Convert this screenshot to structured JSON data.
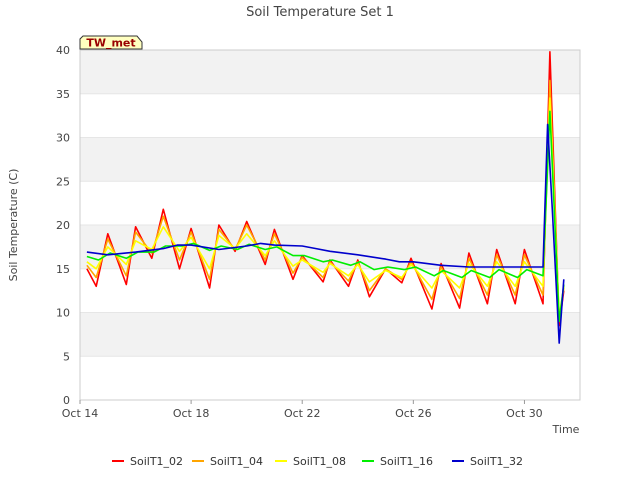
{
  "chart_data": {
    "type": "line",
    "title": "Soil Temperature Set 1",
    "xlabel": "Time",
    "ylabel": "Soil Temperature (C)",
    "ylim": [
      0,
      40
    ],
    "yticks": [
      0,
      5,
      10,
      15,
      20,
      25,
      30,
      35,
      40
    ],
    "xlim": [
      "2022-10-14",
      "2022-11-01T00:00"
    ],
    "xticks": [
      {
        "label": "Oct 14",
        "date": "2022-10-14"
      },
      {
        "label": "Oct 18",
        "date": "2022-10-18"
      },
      {
        "label": "Oct 22",
        "date": "2022-10-22"
      },
      {
        "label": "Oct 26",
        "date": "2022-10-26"
      },
      {
        "label": "Oct 30",
        "date": "2022-10-30"
      }
    ],
    "grid": "horizontal bands",
    "legend_placement": "bottom",
    "annotation": "TW_met",
    "series": [
      {
        "name": "SoilT1_02",
        "color": "#ff0000",
        "points": [
          [
            "2022-10-14T06:00",
            15.0
          ],
          [
            "2022-10-14T14:00",
            13.0
          ],
          [
            "2022-10-15T00:00",
            19.0
          ],
          [
            "2022-10-15T16:00",
            13.2
          ],
          [
            "2022-10-16T00:00",
            19.8
          ],
          [
            "2022-10-16T14:00",
            16.2
          ],
          [
            "2022-10-17T00:00",
            21.8
          ],
          [
            "2022-10-17T14:00",
            15.0
          ],
          [
            "2022-10-18T00:00",
            19.6
          ],
          [
            "2022-10-18T16:00",
            12.8
          ],
          [
            "2022-10-19T00:00",
            20.0
          ],
          [
            "2022-10-19T14:00",
            17.0
          ],
          [
            "2022-10-20T00:00",
            20.4
          ],
          [
            "2022-10-20T16:00",
            15.5
          ],
          [
            "2022-10-21T00:00",
            19.5
          ],
          [
            "2022-10-21T16:00",
            13.8
          ],
          [
            "2022-10-22T00:00",
            16.5
          ],
          [
            "2022-10-22T18:00",
            13.5
          ],
          [
            "2022-10-23T00:00",
            16.0
          ],
          [
            "2022-10-23T16:00",
            13.0
          ],
          [
            "2022-10-24T00:00",
            16.0
          ],
          [
            "2022-10-24T10:00",
            11.8
          ],
          [
            "2022-10-25T00:00",
            15.0
          ],
          [
            "2022-10-25T14:00",
            13.4
          ],
          [
            "2022-10-25T22:00",
            16.2
          ],
          [
            "2022-10-26T16:00",
            10.4
          ],
          [
            "2022-10-27T00:00",
            15.6
          ],
          [
            "2022-10-27T16:00",
            10.5
          ],
          [
            "2022-10-28T00:00",
            16.8
          ],
          [
            "2022-10-28T16:00",
            11.0
          ],
          [
            "2022-10-29T00:00",
            17.2
          ],
          [
            "2022-10-29T16:00",
            11.0
          ],
          [
            "2022-10-30T00:00",
            17.2
          ],
          [
            "2022-10-30T16:00",
            11.0
          ],
          [
            "2022-10-30T22:00",
            39.8
          ],
          [
            "2022-10-31T06:00",
            8.5
          ],
          [
            "2022-10-31T10:00",
            12.5
          ]
        ]
      },
      {
        "name": "SoilT1_04",
        "color": "#ffa500",
        "points": [
          [
            "2022-10-14T06:00",
            15.4
          ],
          [
            "2022-10-14T14:00",
            14.0
          ],
          [
            "2022-10-15T00:00",
            18.4
          ],
          [
            "2022-10-15T16:00",
            14.2
          ],
          [
            "2022-10-16T00:00",
            19.2
          ],
          [
            "2022-10-16T14:00",
            16.8
          ],
          [
            "2022-10-17T00:00",
            21.0
          ],
          [
            "2022-10-17T14:00",
            16.0
          ],
          [
            "2022-10-18T00:00",
            19.2
          ],
          [
            "2022-10-18T16:00",
            13.8
          ],
          [
            "2022-10-19T00:00",
            19.5
          ],
          [
            "2022-10-19T14:00",
            17.2
          ],
          [
            "2022-10-20T00:00",
            20.0
          ],
          [
            "2022-10-20T16:00",
            16.0
          ],
          [
            "2022-10-21T00:00",
            19.0
          ],
          [
            "2022-10-21T16:00",
            14.5
          ],
          [
            "2022-10-22T00:00",
            16.3
          ],
          [
            "2022-10-22T18:00",
            14.0
          ],
          [
            "2022-10-23T00:00",
            15.8
          ],
          [
            "2022-10-23T16:00",
            13.6
          ],
          [
            "2022-10-24T00:00",
            15.8
          ],
          [
            "2022-10-24T10:00",
            12.5
          ],
          [
            "2022-10-25T00:00",
            15.0
          ],
          [
            "2022-10-25T14:00",
            13.8
          ],
          [
            "2022-10-25T22:00",
            15.8
          ],
          [
            "2022-10-26T16:00",
            11.5
          ],
          [
            "2022-10-27T00:00",
            15.2
          ],
          [
            "2022-10-27T16:00",
            11.6
          ],
          [
            "2022-10-28T00:00",
            16.2
          ],
          [
            "2022-10-28T16:00",
            12.0
          ],
          [
            "2022-10-29T00:00",
            16.6
          ],
          [
            "2022-10-29T16:00",
            12.0
          ],
          [
            "2022-10-30T00:00",
            16.6
          ],
          [
            "2022-10-30T16:00",
            12.0
          ],
          [
            "2022-10-30T22:00",
            36.5
          ],
          [
            "2022-10-31T06:00",
            9.0
          ],
          [
            "2022-10-31T10:00",
            12.8
          ]
        ]
      },
      {
        "name": "SoilT1_08",
        "color": "#ffff00",
        "points": [
          [
            "2022-10-14T06:00",
            15.8
          ],
          [
            "2022-10-14T14:00",
            15.0
          ],
          [
            "2022-10-15T00:00",
            17.5
          ],
          [
            "2022-10-15T16:00",
            15.5
          ],
          [
            "2022-10-16T00:00",
            18.2
          ],
          [
            "2022-10-16T14:00",
            17.2
          ],
          [
            "2022-10-17T00:00",
            19.8
          ],
          [
            "2022-10-17T14:00",
            17.0
          ],
          [
            "2022-10-18T00:00",
            18.6
          ],
          [
            "2022-10-18T16:00",
            15.0
          ],
          [
            "2022-10-19T00:00",
            18.8
          ],
          [
            "2022-10-19T14:00",
            17.3
          ],
          [
            "2022-10-20T00:00",
            19.0
          ],
          [
            "2022-10-20T16:00",
            16.5
          ],
          [
            "2022-10-21T00:00",
            18.2
          ],
          [
            "2022-10-21T16:00",
            15.3
          ],
          [
            "2022-10-22T00:00",
            16.0
          ],
          [
            "2022-10-22T18:00",
            14.6
          ],
          [
            "2022-10-23T00:00",
            15.6
          ],
          [
            "2022-10-23T16:00",
            14.2
          ],
          [
            "2022-10-24T00:00",
            15.5
          ],
          [
            "2022-10-24T10:00",
            13.5
          ],
          [
            "2022-10-25T00:00",
            14.8
          ],
          [
            "2022-10-25T14:00",
            14.0
          ],
          [
            "2022-10-25T22:00",
            15.5
          ],
          [
            "2022-10-26T16:00",
            12.8
          ],
          [
            "2022-10-27T00:00",
            14.8
          ],
          [
            "2022-10-27T16:00",
            12.8
          ],
          [
            "2022-10-28T00:00",
            15.6
          ],
          [
            "2022-10-28T16:00",
            13.0
          ],
          [
            "2022-10-29T00:00",
            15.8
          ],
          [
            "2022-10-29T16:00",
            13.0
          ],
          [
            "2022-10-30T00:00",
            15.8
          ],
          [
            "2022-10-30T16:00",
            13.0
          ],
          [
            "2022-10-30T22:00",
            34.5
          ],
          [
            "2022-10-31T06:00",
            9.5
          ],
          [
            "2022-10-31T10:00",
            13.0
          ]
        ]
      },
      {
        "name": "SoilT1_16",
        "color": "#00ee00",
        "points": [
          [
            "2022-10-14T06:00",
            16.4
          ],
          [
            "2022-10-14T16:00",
            16.0
          ],
          [
            "2022-10-15T02:00",
            16.8
          ],
          [
            "2022-10-15T16:00",
            16.2
          ],
          [
            "2022-10-16T02:00",
            16.9
          ],
          [
            "2022-10-16T16:00",
            16.9
          ],
          [
            "2022-10-17T02:00",
            17.6
          ],
          [
            "2022-10-17T16:00",
            17.6
          ],
          [
            "2022-10-18T02:00",
            17.9
          ],
          [
            "2022-10-18T16:00",
            17.1
          ],
          [
            "2022-10-19T02:00",
            17.6
          ],
          [
            "2022-10-19T16:00",
            17.2
          ],
          [
            "2022-10-20T02:00",
            17.8
          ],
          [
            "2022-10-20T16:00",
            17.2
          ],
          [
            "2022-10-21T02:00",
            17.5
          ],
          [
            "2022-10-21T16:00",
            16.5
          ],
          [
            "2022-10-22T02:00",
            16.5
          ],
          [
            "2022-10-22T18:00",
            15.8
          ],
          [
            "2022-10-23T02:00",
            16.0
          ],
          [
            "2022-10-23T18:00",
            15.4
          ],
          [
            "2022-10-24T02:00",
            15.8
          ],
          [
            "2022-10-24T14:00",
            14.9
          ],
          [
            "2022-10-25T02:00",
            15.2
          ],
          [
            "2022-10-25T16:00",
            14.9
          ],
          [
            "2022-10-26T02:00",
            15.2
          ],
          [
            "2022-10-26T18:00",
            14.2
          ],
          [
            "2022-10-27T02:00",
            14.8
          ],
          [
            "2022-10-27T18:00",
            14.0
          ],
          [
            "2022-10-28T02:00",
            14.8
          ],
          [
            "2022-10-28T18:00",
            14.0
          ],
          [
            "2022-10-29T02:00",
            14.9
          ],
          [
            "2022-10-29T18:00",
            14.0
          ],
          [
            "2022-10-30T02:00",
            14.9
          ],
          [
            "2022-10-30T16:00",
            14.2
          ],
          [
            "2022-10-30T22:00",
            33.0
          ],
          [
            "2022-10-31T06:00",
            9.0
          ],
          [
            "2022-10-31T10:00",
            13.2
          ]
        ]
      },
      {
        "name": "SoilT1_32",
        "color": "#0000cc",
        "points": [
          [
            "2022-10-14T06:00",
            16.9
          ],
          [
            "2022-10-15T00:00",
            16.6
          ],
          [
            "2022-10-16T00:00",
            16.9
          ],
          [
            "2022-10-17T00:00",
            17.3
          ],
          [
            "2022-10-17T12:00",
            17.7
          ],
          [
            "2022-10-18T00:00",
            17.7
          ],
          [
            "2022-10-19T00:00",
            17.2
          ],
          [
            "2022-10-20T00:00",
            17.6
          ],
          [
            "2022-10-20T12:00",
            17.9
          ],
          [
            "2022-10-21T00:00",
            17.7
          ],
          [
            "2022-10-22T00:00",
            17.6
          ],
          [
            "2022-10-22T12:00",
            17.3
          ],
          [
            "2022-10-23T00:00",
            17.0
          ],
          [
            "2022-10-24T00:00",
            16.6
          ],
          [
            "2022-10-25T00:00",
            16.1
          ],
          [
            "2022-10-25T12:00",
            15.8
          ],
          [
            "2022-10-26T00:00",
            15.8
          ],
          [
            "2022-10-27T00:00",
            15.4
          ],
          [
            "2022-10-28T00:00",
            15.2
          ],
          [
            "2022-10-29T00:00",
            15.2
          ],
          [
            "2022-10-30T00:00",
            15.2
          ],
          [
            "2022-10-30T16:00",
            15.2
          ],
          [
            "2022-10-30T20:00",
            31.5
          ],
          [
            "2022-10-31T00:00",
            22.0
          ],
          [
            "2022-10-31T06:00",
            6.5
          ],
          [
            "2022-10-31T10:00",
            13.8
          ]
        ]
      }
    ]
  }
}
